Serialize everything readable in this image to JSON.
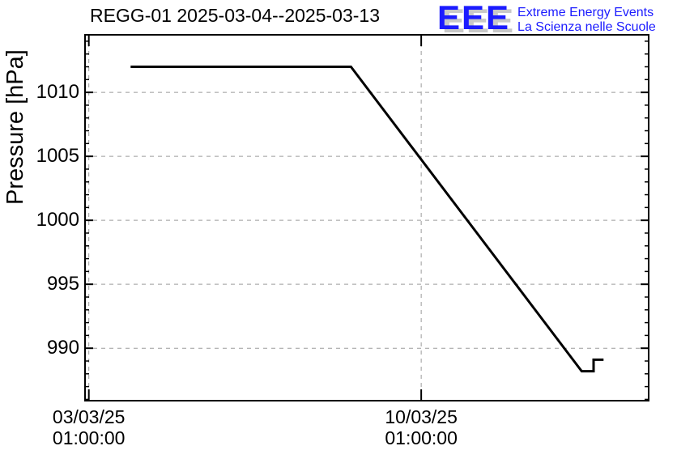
{
  "page": {
    "background": "#ffffff"
  },
  "logo": {
    "acronym": "EEE",
    "line1": "Extreme Energy Events",
    "line2": "La Scienza nelle Scuole",
    "color": "#1b1bff",
    "shadow_color": "#c8c8c8"
  },
  "colors": {
    "frame": "#000000",
    "grid": "#9c9c9c",
    "text": "#000000"
  },
  "chart_data": {
    "type": "line",
    "title": "REGG-01 2025-03-04--2025-03-13",
    "xlabel": "",
    "ylabel": "Pressure [hPa]",
    "x_unit": "days since 2025-03-03 01:00:00",
    "xlim": [
      -0.08,
      11.79
    ],
    "ylim": [
      985.9,
      1014.5
    ],
    "grid": true,
    "grid_style": "dashed",
    "legend": "none",
    "y_major_ticks": [
      990,
      995,
      1000,
      1005,
      1010
    ],
    "y_minor_step": 1,
    "x_major_ticks": [
      {
        "pos": 0,
        "date": "03/03/25",
        "time": "01:00:00"
      },
      {
        "pos": 7,
        "date": "10/03/25",
        "time": "01:00:00"
      }
    ],
    "series": [
      {
        "name": "pressure",
        "color": "#000000",
        "line_width": 3,
        "points": [
          {
            "x": 0.88,
            "y": 1012.0
          },
          {
            "x": 5.52,
            "y": 1012.0
          },
          {
            "x": 10.38,
            "y": 988.2
          },
          {
            "x": 10.63,
            "y": 988.2
          },
          {
            "x": 10.63,
            "y": 989.1
          },
          {
            "x": 10.84,
            "y": 989.1
          }
        ]
      }
    ]
  }
}
